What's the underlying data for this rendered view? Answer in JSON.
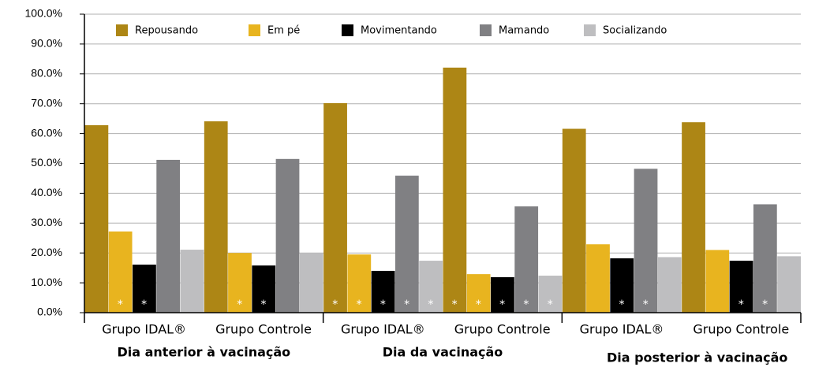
{
  "chart_data": {
    "type": "bar",
    "categories": [
      "Grupo IDAL®",
      "Grupo Controle",
      "Grupo IDAL®",
      "Grupo Controle",
      "Grupo IDAL®",
      "Grupo Controle"
    ],
    "groups": [
      "Dia anterior à vacinação",
      "Dia da vacinação",
      "Dia posterior à vacinação"
    ],
    "series": [
      {
        "name": "Repousando",
        "color": "#ad8615",
        "values": [
          62.8,
          64.1,
          70.2,
          82.1,
          61.6,
          63.8
        ],
        "markers": [
          null,
          null,
          "*",
          "*",
          null,
          null
        ]
      },
      {
        "name": "Em pé",
        "color": "#e8b41f",
        "values": [
          27.2,
          20.0,
          19.5,
          12.9,
          22.9,
          21.0
        ],
        "markers": [
          "*",
          "*",
          "*",
          "*",
          null,
          null
        ]
      },
      {
        "name": "Movimentando",
        "color": "#000000",
        "values": [
          16.1,
          15.8,
          14.0,
          11.9,
          18.2,
          17.4
        ],
        "markers": [
          "*",
          "*",
          "*",
          "*",
          "*",
          "*"
        ]
      },
      {
        "name": "Mamando",
        "color": "#808083",
        "values": [
          51.2,
          51.5,
          45.9,
          35.6,
          48.2,
          36.3
        ],
        "markers": [
          null,
          null,
          "*",
          "*",
          "*",
          "*"
        ]
      },
      {
        "name": "Socializando",
        "color": "#bebec0",
        "values": [
          21.1,
          20.0,
          17.4,
          12.4,
          18.6,
          18.9
        ],
        "markers": [
          null,
          null,
          "*",
          "*",
          null,
          null
        ]
      }
    ],
    "ylim": [
      0,
      100
    ],
    "yticks": [
      {
        "value": 0,
        "label": "0.0%"
      },
      {
        "value": 10,
        "label": "10.0%"
      },
      {
        "value": 20,
        "label": "20.0%"
      },
      {
        "value": 30,
        "label": "30.0%"
      },
      {
        "value": 40,
        "label": "40.0%"
      },
      {
        "value": 50,
        "label": "50.0%"
      },
      {
        "value": 60,
        "label": "60.0%"
      },
      {
        "value": 70,
        "label": "70.0%"
      },
      {
        "value": 80,
        "label": "80.0%"
      },
      {
        "value": 90,
        "label": "90.0%"
      },
      {
        "value": 100,
        "label": "100.0%"
      }
    ],
    "grid": true,
    "legend": "top"
  }
}
